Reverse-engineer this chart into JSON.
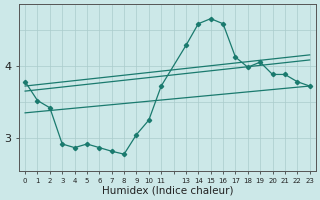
{
  "xlabel": "Humidex (Indice chaleur)",
  "bg_color": "#cce8e8",
  "line_color": "#1a7a6e",
  "grid_color": "#aacccc",
  "x_main": [
    0,
    1,
    2,
    3,
    4,
    5,
    6,
    7,
    8,
    9,
    10,
    11,
    13,
    14,
    15,
    16,
    17,
    18,
    19,
    20,
    21,
    22,
    23
  ],
  "y_main": [
    3.78,
    3.52,
    3.42,
    2.92,
    2.87,
    2.92,
    2.87,
    2.82,
    2.78,
    3.05,
    3.25,
    3.72,
    4.28,
    4.58,
    4.65,
    4.58,
    4.12,
    3.98,
    4.05,
    3.88,
    3.88,
    3.78,
    3.72
  ],
  "line1_x": [
    0,
    23
  ],
  "line1_y": [
    3.72,
    4.15
  ],
  "line2_x": [
    0,
    23
  ],
  "line2_y": [
    3.65,
    4.08
  ],
  "line3_x": [
    0,
    23
  ],
  "line3_y": [
    3.35,
    3.72
  ],
  "xlim": [
    -0.5,
    23.5
  ],
  "ylim": [
    2.55,
    4.85
  ],
  "yticks": [
    3,
    4
  ],
  "xtick_labels": [
    "0",
    "1",
    "2",
    "3",
    "4",
    "5",
    "6",
    "7",
    "8",
    "9",
    "10",
    "11",
    "",
    "13",
    "14",
    "15",
    "16",
    "17",
    "18",
    "19",
    "20",
    "21",
    "22",
    "23"
  ]
}
